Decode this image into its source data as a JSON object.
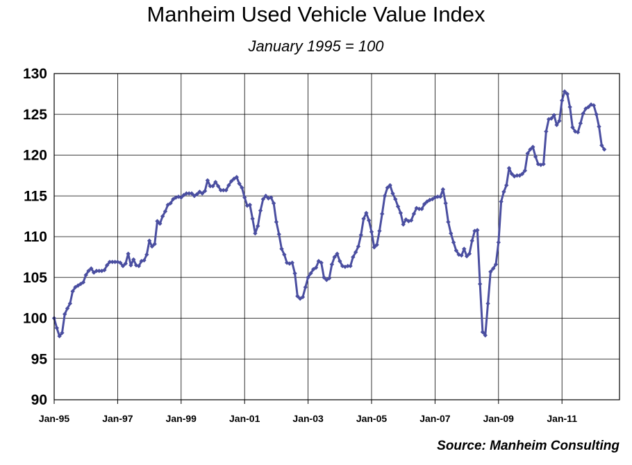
{
  "chart_data": {
    "type": "line",
    "title": "Manheim Used Vehicle Value Index",
    "subtitle": "January 1995 = 100",
    "source": "Source: Manheim Consulting",
    "xlabel": "",
    "ylabel": "",
    "ylim": [
      90,
      130
    ],
    "y_ticks": [
      "130",
      "125",
      "120",
      "115",
      "110",
      "105",
      "100",
      "95",
      "90"
    ],
    "x_tick_labels": [
      "Jan-95",
      "Jan-97",
      "Jan-99",
      "Jan-01",
      "Jan-03",
      "Jan-05",
      "Jan-07",
      "Jan-09",
      "Jan-11"
    ],
    "grid": true,
    "line_color": "#4a4ea0",
    "x_start": "Jan-95",
    "frequency": "monthly",
    "series": [
      {
        "values": [
          100.0,
          98.8,
          97.8,
          98.2,
          100.5,
          101.2,
          101.8,
          103.3,
          103.8,
          104.0,
          104.2,
          104.4,
          105.3,
          105.8,
          106.1,
          105.6,
          105.8,
          105.8,
          105.8,
          105.9,
          106.5,
          106.9,
          106.9,
          106.9,
          106.9,
          106.8,
          106.4,
          106.7,
          107.9,
          106.5,
          107.2,
          106.5,
          106.4,
          107.0,
          107.1,
          107.8,
          109.5,
          108.8,
          109.1,
          111.9,
          111.6,
          112.5,
          113.1,
          113.9,
          114.1,
          114.6,
          114.8,
          114.9,
          114.8,
          115.1,
          115.3,
          115.3,
          115.3,
          115.0,
          115.2,
          115.5,
          115.3,
          115.6,
          116.9,
          116.2,
          116.2,
          116.7,
          116.2,
          115.7,
          115.7,
          115.7,
          116.3,
          116.8,
          117.1,
          117.3,
          116.5,
          116.0,
          114.8,
          113.8,
          113.9,
          112.2,
          110.4,
          111.3,
          113.2,
          114.6,
          115.0,
          114.7,
          114.8,
          114.1,
          111.8,
          110.3,
          108.5,
          107.8,
          106.8,
          106.7,
          106.8,
          105.5,
          102.7,
          102.4,
          102.6,
          103.8,
          105.0,
          105.5,
          106.0,
          106.2,
          107.0,
          106.8,
          105.0,
          104.7,
          104.9,
          106.6,
          107.5,
          107.9,
          107.0,
          106.4,
          106.3,
          106.4,
          106.4,
          107.5,
          108.1,
          108.8,
          110.2,
          112.2,
          112.9,
          112.0,
          110.6,
          108.7,
          109.0,
          110.7,
          112.8,
          115.0,
          116.0,
          116.3,
          115.3,
          114.6,
          113.7,
          112.9,
          111.5,
          112.1,
          111.9,
          112.0,
          112.8,
          113.5,
          113.4,
          113.4,
          114.0,
          114.3,
          114.5,
          114.6,
          114.8,
          114.9,
          114.9,
          115.8,
          114.1,
          111.8,
          110.4,
          109.3,
          108.3,
          107.8,
          107.7,
          108.5,
          107.6,
          107.9,
          109.5,
          110.7,
          110.8,
          104.2,
          98.3,
          97.9,
          101.8,
          105.7,
          106.1,
          106.6,
          109.3,
          114.3,
          115.5,
          116.3,
          118.4,
          117.7,
          117.4,
          117.5,
          117.5,
          117.7,
          118.1,
          120.2,
          120.7,
          121.0,
          119.8,
          118.9,
          118.8,
          118.9,
          122.9,
          124.4,
          124.5,
          124.9,
          123.7,
          124.2,
          126.7,
          127.8,
          127.5,
          125.9,
          123.4,
          122.9,
          122.8,
          123.9,
          125.1,
          125.7,
          125.9,
          126.2,
          126.1,
          125.0,
          123.5,
          121.2,
          120.7
        ]
      }
    ]
  }
}
